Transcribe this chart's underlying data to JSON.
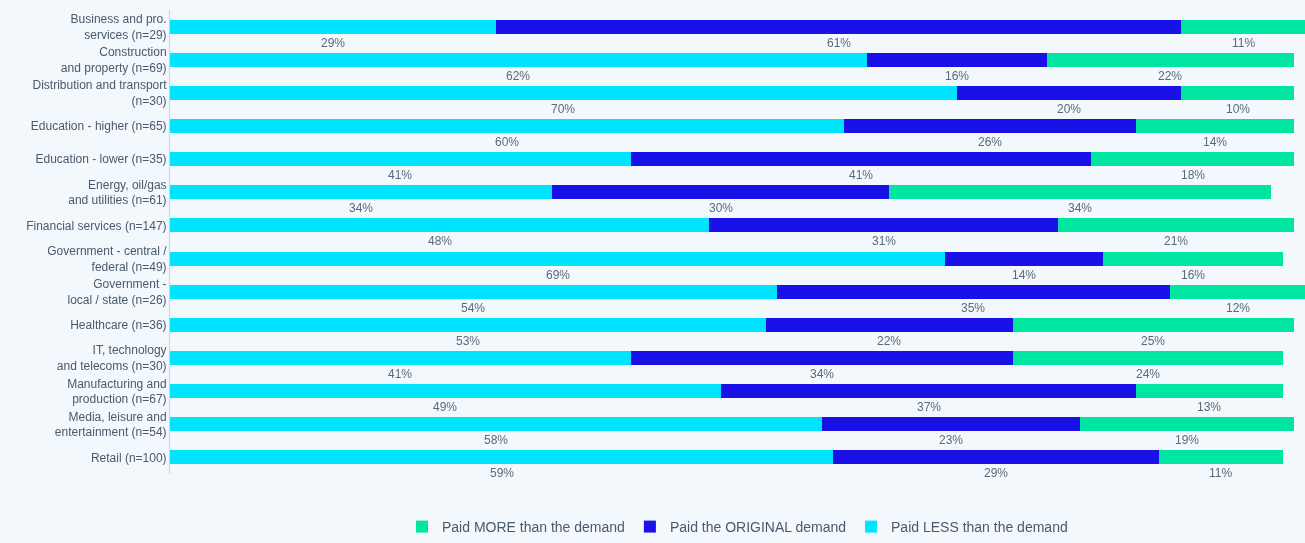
{
  "chart_data": {
    "type": "bar",
    "orientation": "horizontal",
    "stacked": true,
    "legend": "bottom",
    "tick_labels": "y",
    "grid": false,
    "xlim": [
      0,
      101
    ],
    "categories": [
      "Business and pro.\nservices (n=29)",
      "Construction\nand property (n=69)",
      "Distribution and transport\n(n=30)",
      "Education - higher (n=65)",
      "Education - lower (n=35)",
      "Energy, oil/gas\nand utilities (n=61)",
      "Financial services (n=147)",
      "Government - central /\nfederal (n=49)",
      "Government -\nlocal / state (n=26)",
      "Healthcare (n=36)",
      "IT, technology\nand telecoms (n=30)",
      "Manufacturing and\nproduction (n=67)",
      "Media, leisure and\nentertainment (n=54)",
      "Retail (n=100)"
    ],
    "series": [
      {
        "name": "Paid LESS than the demand",
        "color": "#00e5ff",
        "values": [
          29,
          62,
          70,
          60,
          41,
          34,
          48,
          69,
          54,
          53,
          41,
          49,
          58,
          59
        ],
        "value_labels": [
          "29%",
          "62%",
          "70%",
          "60%",
          "41%",
          "34%",
          "48%",
          "69%",
          "54%",
          "53%",
          "41%",
          "49%",
          "58%",
          "59%"
        ]
      },
      {
        "name": "Paid the ORIGINAL demand",
        "color": "#1a10e8",
        "values": [
          61,
          16,
          20,
          26,
          41,
          30,
          31,
          14,
          35,
          22,
          34,
          37,
          23,
          29
        ],
        "value_labels": [
          "61%",
          "16%",
          "20%",
          "26%",
          "41%",
          "30%",
          "31%",
          "14%",
          "35%",
          "22%",
          "34%",
          "37%",
          "23%",
          "29%"
        ]
      },
      {
        "name": "Paid MORE than the demand",
        "color": "#00e5a0",
        "values": [
          11,
          22,
          10,
          14,
          18,
          34,
          21,
          16,
          12,
          25,
          24,
          13,
          19,
          11
        ],
        "value_labels": [
          "11%",
          "22%",
          "10%",
          "14%",
          "18%",
          "34%",
          "21%",
          "16%",
          "12%",
          "25%",
          "24%",
          "13%",
          "19%",
          "11%"
        ]
      }
    ]
  }
}
